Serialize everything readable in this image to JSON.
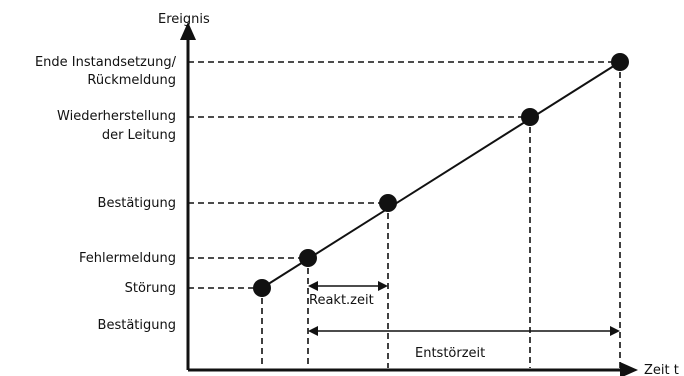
{
  "axes": {
    "y_label": "Ereignis",
    "x_label": "Zeit t"
  },
  "events": [
    {
      "id": "stoerung",
      "lines": [
        "Störung"
      ]
    },
    {
      "id": "fehlermeldung",
      "lines": [
        "Fehlermeldung"
      ]
    },
    {
      "id": "bestaetigung",
      "lines": [
        "Bestätigung"
      ]
    },
    {
      "id": "wiederherstellung",
      "lines": [
        "Wiederherstellung",
        "der Leitung"
      ]
    },
    {
      "id": "ende",
      "lines": [
        "Ende Instandsetzung/",
        "Rückmeldung"
      ]
    }
  ],
  "lower_label": "Bestätigung",
  "intervals": {
    "reaktion": "Reakt.zeit",
    "entstoerung": "Entstörzeit"
  }
}
